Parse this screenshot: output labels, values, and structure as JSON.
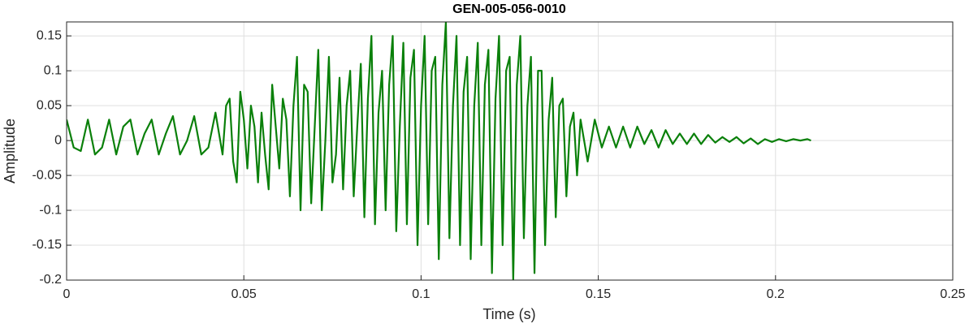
{
  "chart_data": {
    "type": "line",
    "title": "GEN-005-056-0010",
    "xlabel": "Time (s)",
    "ylabel": "Amplitude",
    "color": "#0a800a",
    "grid": true,
    "xlim": [
      0,
      0.25
    ],
    "xticks": [
      0,
      0.05,
      0.1,
      0.15,
      0.2,
      0.25
    ],
    "ylim": [
      -0.2,
      0.17
    ],
    "yticks": [
      -0.2,
      -0.15,
      -0.1,
      -0.05,
      0,
      0.05,
      0.1,
      0.15
    ],
    "x": [
      0,
      0.002,
      0.004,
      0.006,
      0.008,
      0.01,
      0.012,
      0.014,
      0.016,
      0.018,
      0.02,
      0.022,
      0.024,
      0.026,
      0.028,
      0.03,
      0.032,
      0.034,
      0.036,
      0.038,
      0.04,
      0.042,
      0.044,
      0.045,
      0.046,
      0.047,
      0.048,
      0.049,
      0.05,
      0.051,
      0.052,
      0.053,
      0.054,
      0.055,
      0.056,
      0.057,
      0.058,
      0.059,
      0.06,
      0.061,
      0.062,
      0.063,
      0.064,
      0.065,
      0.066,
      0.067,
      0.068,
      0.069,
      0.07,
      0.071,
      0.072,
      0.073,
      0.074,
      0.075,
      0.076,
      0.077,
      0.078,
      0.079,
      0.08,
      0.081,
      0.082,
      0.083,
      0.084,
      0.085,
      0.086,
      0.087,
      0.088,
      0.089,
      0.09,
      0.091,
      0.092,
      0.093,
      0.094,
      0.095,
      0.096,
      0.097,
      0.098,
      0.099,
      0.1,
      0.101,
      0.102,
      0.103,
      0.104,
      0.105,
      0.106,
      0.107,
      0.108,
      0.109,
      0.11,
      0.111,
      0.112,
      0.113,
      0.114,
      0.115,
      0.116,
      0.117,
      0.118,
      0.119,
      0.12,
      0.121,
      0.122,
      0.123,
      0.124,
      0.125,
      0.126,
      0.127,
      0.128,
      0.129,
      0.13,
      0.131,
      0.132,
      0.133,
      0.134,
      0.135,
      0.136,
      0.137,
      0.138,
      0.139,
      0.14,
      0.141,
      0.142,
      0.143,
      0.144,
      0.145,
      0.147,
      0.149,
      0.151,
      0.153,
      0.155,
      0.157,
      0.159,
      0.161,
      0.163,
      0.165,
      0.167,
      0.169,
      0.171,
      0.173,
      0.175,
      0.177,
      0.179,
      0.181,
      0.183,
      0.185,
      0.187,
      0.189,
      0.191,
      0.193,
      0.195,
      0.197,
      0.199,
      0.201,
      0.203,
      0.205,
      0.207,
      0.209,
      0.21
    ],
    "values": [
      0.03,
      -0.01,
      -0.015,
      0.03,
      -0.02,
      -0.01,
      0.03,
      -0.02,
      0.02,
      0.03,
      -0.02,
      0.01,
      0.03,
      -0.02,
      0.01,
      0.035,
      -0.02,
      0.0,
      0.035,
      -0.02,
      -0.01,
      0.04,
      -0.02,
      0.05,
      0.06,
      -0.03,
      -0.06,
      0.07,
      0.03,
      -0.04,
      0.05,
      0.02,
      -0.06,
      0.04,
      -0.02,
      -0.07,
      0.08,
      0.02,
      -0.04,
      0.06,
      0.03,
      -0.08,
      0.05,
      0.12,
      -0.1,
      0.08,
      0.07,
      -0.09,
      0.02,
      0.13,
      -0.1,
      0.0,
      0.12,
      -0.06,
      -0.02,
      0.09,
      -0.07,
      0.05,
      0.1,
      -0.08,
      0.02,
      0.11,
      -0.11,
      0.06,
      0.15,
      -0.12,
      0.04,
      0.1,
      -0.1,
      0.08,
      0.15,
      -0.13,
      0.02,
      0.14,
      -0.12,
      0.09,
      0.13,
      -0.15,
      0.05,
      0.15,
      -0.12,
      0.1,
      0.12,
      -0.17,
      0.08,
      0.17,
      -0.14,
      0.05,
      0.15,
      -0.15,
      0.07,
      0.12,
      -0.17,
      0.05,
      0.14,
      -0.15,
      0.08,
      0.13,
      -0.19,
      0.06,
      0.15,
      -0.15,
      0.1,
      0.12,
      -0.2,
      0.08,
      0.15,
      -0.14,
      0.05,
      0.12,
      -0.19,
      0.1,
      0.1,
      -0.15,
      0.03,
      0.09,
      -0.11,
      0.05,
      0.06,
      -0.08,
      0.02,
      0.04,
      -0.05,
      0.03,
      -0.03,
      0.03,
      -0.01,
      0.02,
      -0.01,
      0.02,
      -0.01,
      0.02,
      -0.005,
      0.015,
      -0.01,
      0.015,
      -0.005,
      0.01,
      -0.005,
      0.01,
      -0.005,
      0.008,
      -0.003,
      0.005,
      -0.002,
      0.005,
      -0.004,
      0.003,
      -0.005,
      0.002,
      -0.002,
      0.002,
      -0.001,
      0.002,
      0.0,
      0.002,
      0.0
    ]
  }
}
